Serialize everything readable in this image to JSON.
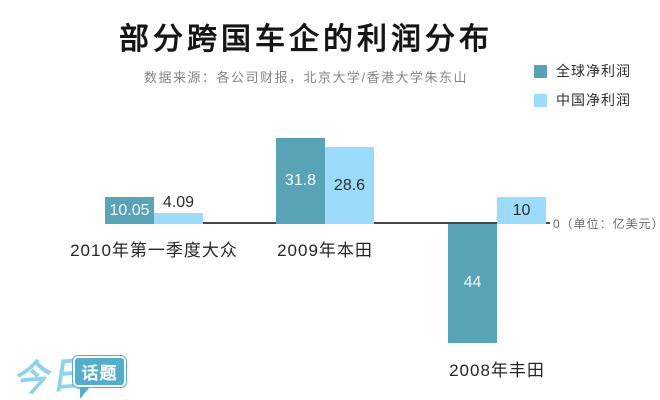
{
  "header": {
    "title": "部分跨国车企的利润分布",
    "subtitle": "数据来源：各公司财报，北京大学/香港大学朱东山"
  },
  "legend": {
    "items": [
      {
        "label": "全球净利润",
        "color": "#58a4b6"
      },
      {
        "label": "中国净利润",
        "color": "#9cdcfa"
      }
    ]
  },
  "chart_data": {
    "type": "bar",
    "title": "部分跨国车企的利润分布",
    "source_note": "数据来源：各公司财报，北京大学/香港大学朱东山",
    "categories": [
      "2010年第一季度大众",
      "2009年本田",
      "2008年丰田"
    ],
    "series": [
      {
        "name": "全球净利润",
        "color": "#58a4b6",
        "values": [
          10.05,
          31.8,
          -44
        ]
      },
      {
        "name": "中国净利润",
        "color": "#9cdcfa",
        "values": [
          4.09,
          28.6,
          10
        ]
      }
    ],
    "value_labels": [
      [
        "10.05",
        "4.09"
      ],
      [
        "31.8",
        "28.6"
      ],
      [
        "44",
        "10"
      ]
    ],
    "unit_label": "0（单位：亿美元）",
    "unit": "亿美元",
    "baseline": 0,
    "ylim": [
      -48,
      34
    ],
    "grid": false,
    "legend_position": "top-right"
  },
  "logo": {
    "script_text": "今日",
    "bubble_text": "话题"
  },
  "colors": {
    "global_series": "#58a4b6",
    "china_series": "#9cdcfa",
    "axis": "#474747",
    "logo_script": "#8ed2ec",
    "logo_bubble": "#53adcc"
  }
}
